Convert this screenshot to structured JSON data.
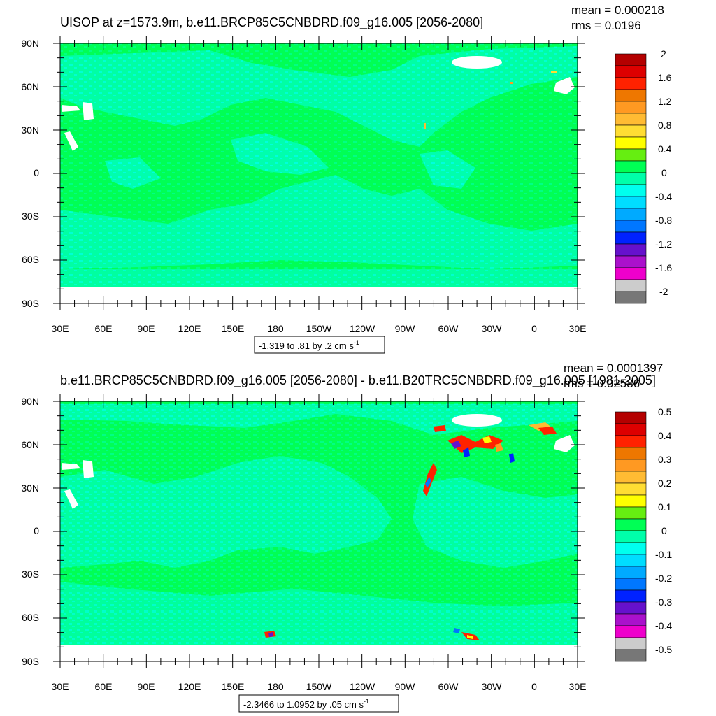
{
  "panels": [
    {
      "title": "UISOP at z=1573.9m, b.e11.BRCP85C5CNBDRD.f09_g16.005 [2056-2080]",
      "stats": {
        "mean": "mean = 0.000218",
        "rms": "rms = 0.0196"
      },
      "range_label": "-1.319 to .81 by .2 cm s",
      "range_unit_sup": "-1"
    },
    {
      "title": "b.e11.BRCP85C5CNBDRD.f09_g16.005 [2056-2080] - b.e11.B20TRC5CNBDRD.f09_g16.005 [1981-2005]",
      "stats": {
        "mean": "mean = 0.0001397",
        "rms": "rms = 0.02586"
      },
      "range_label": "-2.3466 to 1.0952 by .05 cm s",
      "range_unit_sup": "-1"
    }
  ],
  "chart_data": [
    {
      "type": "heatmap",
      "title": "UISOP at z=1573.9m, b.e11.BRCP85C5CNBDRD.f09_g16.005 [2056-2080]",
      "units": "cm s-1",
      "mean": 0.000218,
      "rms": 0.0196,
      "data_min": -1.319,
      "data_max": 0.81,
      "contour_interval": 0.2,
      "x_ticks": [
        "30E",
        "60E",
        "90E",
        "120E",
        "150E",
        "180",
        "150W",
        "120W",
        "90W",
        "60W",
        "30W",
        "0",
        "30E"
      ],
      "y_ticks": [
        "90N",
        "60N",
        "30N",
        "0",
        "30S",
        "60S",
        "90S"
      ],
      "colorbar_labels": [
        "2",
        "1.6",
        "1.2",
        "0.8",
        "0.4",
        "0",
        "-0.4",
        "-0.8",
        "-1.2",
        "-1.6",
        "-2"
      ],
      "colorbar_levels_count": 20,
      "dominant_colors": {
        "background_ocean": "#00ff55",
        "weak_negative": "#00ffdd",
        "land": "#ffffff"
      }
    },
    {
      "type": "heatmap",
      "title": "b.e11.BRCP85C5CNBDRD.f09_g16.005 [2056-2080] - b.e11.B20TRC5CNBDRD.f09_g16.005 [1981-2005]",
      "units": "cm s-1",
      "mean": 0.0001397,
      "rms": 0.02586,
      "data_min": -2.3466,
      "data_max": 1.0952,
      "contour_interval": 0.05,
      "x_ticks": [
        "30E",
        "60E",
        "90E",
        "120E",
        "150E",
        "180",
        "150W",
        "120W",
        "90W",
        "60W",
        "30W",
        "0",
        "30E"
      ],
      "y_ticks": [
        "90N",
        "60N",
        "30N",
        "0",
        "30S",
        "60S",
        "90S"
      ],
      "colorbar_labels": [
        "0.5",
        "0.4",
        "0.3",
        "0.2",
        "0.1",
        "0",
        "-0.1",
        "-0.2",
        "-0.3",
        "-0.4",
        "-0.5"
      ],
      "colorbar_levels_count": 20,
      "dominant_colors": {
        "background_ocean": "#00ff55",
        "weak_negative": "#00ffdd",
        "land": "#ffffff"
      }
    }
  ],
  "colorbar_colors": [
    "#b40000",
    "#dd0000",
    "#ff2200",
    "#ee7700",
    "#ff9922",
    "#ffbb33",
    "#ffdd33",
    "#ffff00",
    "#66ee11",
    "#00ff55",
    "#00ffaa",
    "#00ffee",
    "#00ddff",
    "#00aaff",
    "#0077ff",
    "#0022ff",
    "#6611cc",
    "#aa11cc",
    "#ee00cc",
    "#cccccc",
    "#777777"
  ]
}
